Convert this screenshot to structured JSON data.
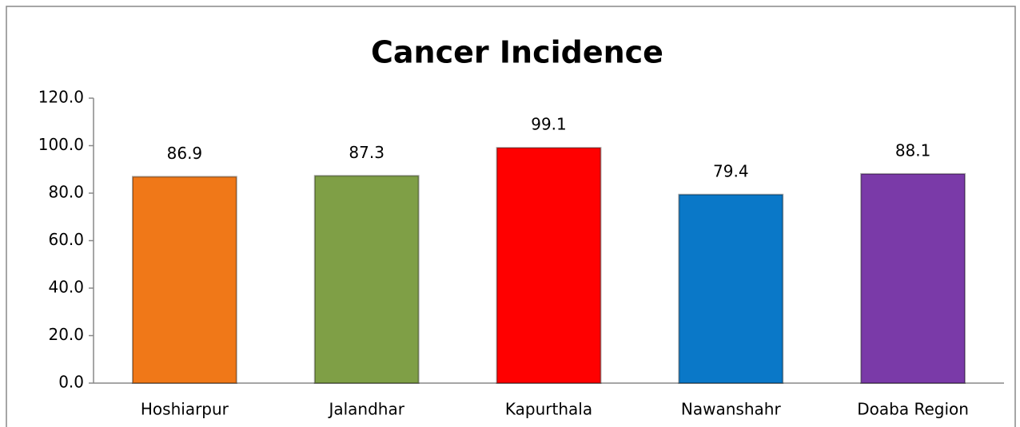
{
  "chart_data": {
    "type": "bar",
    "title": "Cancer Incidence",
    "categories": [
      "Hoshiarpur",
      "Jalandhar",
      "Kapurthala",
      "Nawanshahr",
      "Doaba Region"
    ],
    "values": [
      86.9,
      87.3,
      99.1,
      79.4,
      88.1
    ],
    "colors": [
      "#f07818",
      "#7f9f46",
      "#ff0000",
      "#0a78c8",
      "#7a3aa8"
    ],
    "ylim": [
      0,
      120
    ],
    "yticks": [
      {
        "value": 0,
        "label": "0.0"
      },
      {
        "value": 20,
        "label": "20.0"
      },
      {
        "value": 40,
        "label": "40.0"
      },
      {
        "value": 60,
        "label": "60.0"
      },
      {
        "value": 80,
        "label": "80.0"
      },
      {
        "value": 100,
        "label": "100.0"
      },
      {
        "value": 120,
        "label": "120.0"
      }
    ],
    "grid": false
  }
}
